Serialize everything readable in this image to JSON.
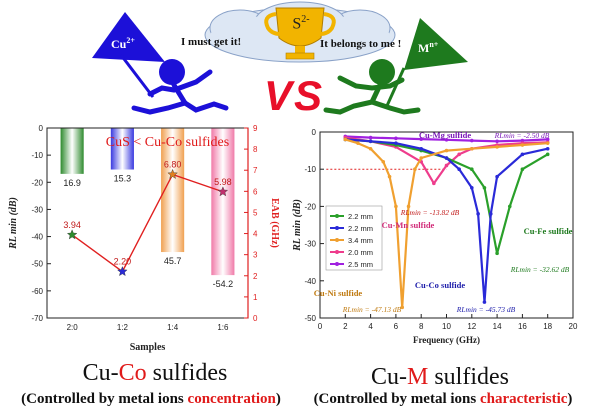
{
  "header": {
    "left_ion": "Cu",
    "left_ion_sup": "2+",
    "right_ion": "M",
    "right_ion_sup": "n+",
    "center_ion": "S",
    "center_ion_sup": "2-",
    "left_speech": "I must get it!",
    "right_speech": "It belongs to me !",
    "vs_text": "VS",
    "colors": {
      "left_figure": "#1c10d8",
      "right_figure": "#1e7a1e",
      "vs": "#e8102a",
      "trophy": "#f2b400"
    }
  },
  "left_panel": {
    "title_text": "CuS < Cu-Co sulfides",
    "caption_main_prefix": "Cu-",
    "caption_main_highlight": "Co",
    "caption_main_suffix": " sulfides",
    "caption_sub_prefix": "(Controlled by metal ions ",
    "caption_sub_highlight": "concentration",
    "caption_sub_suffix": ")"
  },
  "right_panel": {
    "caption_main_prefix": "Cu-",
    "caption_main_highlight": "M",
    "caption_main_suffix": " sulfides",
    "caption_sub_prefix": "(Controlled by metal ions ",
    "caption_sub_highlight": "characteristic",
    "caption_sub_suffix": ")"
  },
  "chart_data": [
    {
      "type": "bar",
      "categories": [
        "2:0",
        "1:2",
        "1:4",
        "1:6"
      ],
      "series": [
        {
          "name": "RLmin",
          "values": [
            -16.9,
            -15.3,
            -45.7,
            -54.2
          ],
          "colors": [
            "#2e8b2e",
            "#3a3ae0",
            "#f0a050",
            "#f07aa8"
          ]
        },
        {
          "name": "EAB",
          "values": [
            3.94,
            2.2,
            6.8,
            5.98
          ]
        }
      ],
      "bar_labels": [
        "16.9",
        "15.3",
        "45.7",
        "-54.2"
      ],
      "eab_labels": [
        "3.94",
        "2.20",
        "6.80",
        "5.98"
      ],
      "xlabel": "Samples",
      "ylabel": "RL min (dB)",
      "y2label": "EAB (GHz)",
      "ylim": [
        0,
        -70
      ],
      "y2lim": [
        0,
        9
      ],
      "yticks": [
        "0",
        "-10",
        "-20",
        "-30",
        "-40",
        "-50",
        "-60",
        "-70"
      ],
      "y2ticks": [
        "0",
        "1",
        "2",
        "3",
        "4",
        "5",
        "6",
        "7",
        "8",
        "9"
      ]
    },
    {
      "type": "line",
      "xlabel": "Frequency (GHz)",
      "ylabel": "RL min (dB)",
      "xlim": [
        0,
        20
      ],
      "ylim": [
        -50,
        0
      ],
      "xticks": [
        "0",
        "2",
        "4",
        "6",
        "8",
        "10",
        "12",
        "14",
        "16",
        "18",
        "20"
      ],
      "yticks": [
        "0",
        "-10",
        "-20",
        "-30",
        "-40",
        "-50"
      ],
      "reference_line": -10,
      "legend": [
        "2.2 mm",
        "2.2 mm",
        "3.4 mm",
        "2.0 mm",
        "2.5 mm"
      ],
      "series": [
        {
          "name": "Cu-Mg sulfide",
          "color": "#a020e0",
          "x": [
            2,
            4,
            6,
            8,
            10,
            12,
            14,
            16,
            18
          ],
          "y": [
            -1.2,
            -1.5,
            -1.7,
            -1.9,
            -2.1,
            -2.3,
            -2.5,
            -2.3,
            -2.0
          ]
        },
        {
          "name": "Cu-Mn sulfide",
          "color": "#ee3c8c",
          "x": [
            2,
            4,
            6,
            8,
            9,
            10,
            11,
            12,
            14,
            16,
            18
          ],
          "y": [
            -1.5,
            -2.5,
            -4.0,
            -8.0,
            -13.82,
            -9.0,
            -6.0,
            -4.5,
            -3.5,
            -3.0,
            -2.8
          ]
        },
        {
          "name": "Cu-Fe sulfide",
          "color": "#2aa02a",
          "x": [
            2,
            4,
            6,
            8,
            10,
            12,
            13,
            14,
            15,
            16,
            18
          ],
          "y": [
            -2.0,
            -2.5,
            -3.5,
            -5.0,
            -7.0,
            -10.0,
            -15.0,
            -32.62,
            -20.0,
            -10.0,
            -6.0
          ]
        },
        {
          "name": "Cu-Co sulfide",
          "color": "#2a2ad8",
          "x": [
            2,
            4,
            6,
            8,
            10,
            11,
            12,
            12.5,
            13,
            13.5,
            14,
            16,
            18
          ],
          "y": [
            -2.0,
            -2.5,
            -3.0,
            -4.5,
            -7.0,
            -10.0,
            -15.0,
            -22.0,
            -45.73,
            -22.0,
            -12.0,
            -6.0,
            -4.5
          ]
        },
        {
          "name": "Cu-Ni sulfide",
          "color": "#f0a030",
          "x": [
            2,
            3,
            4,
            5,
            5.5,
            6,
            6.5,
            7,
            7.5,
            8,
            10,
            12,
            14,
            16,
            18
          ],
          "y": [
            -2.0,
            -3.0,
            -4.5,
            -8.0,
            -12.0,
            -20.0,
            -47.13,
            -20.0,
            -10.0,
            -7.0,
            -5.0,
            -4.5,
            -4.0,
            -3.5,
            -3.0
          ]
        }
      ],
      "annotations": [
        "RLmin = -2.50 dB",
        "RLmin = -13.82 dB",
        "RLmin = -32.62 dB",
        "RLmin = -45.73 dB",
        "RLmin = -47.13 dB"
      ]
    }
  ]
}
